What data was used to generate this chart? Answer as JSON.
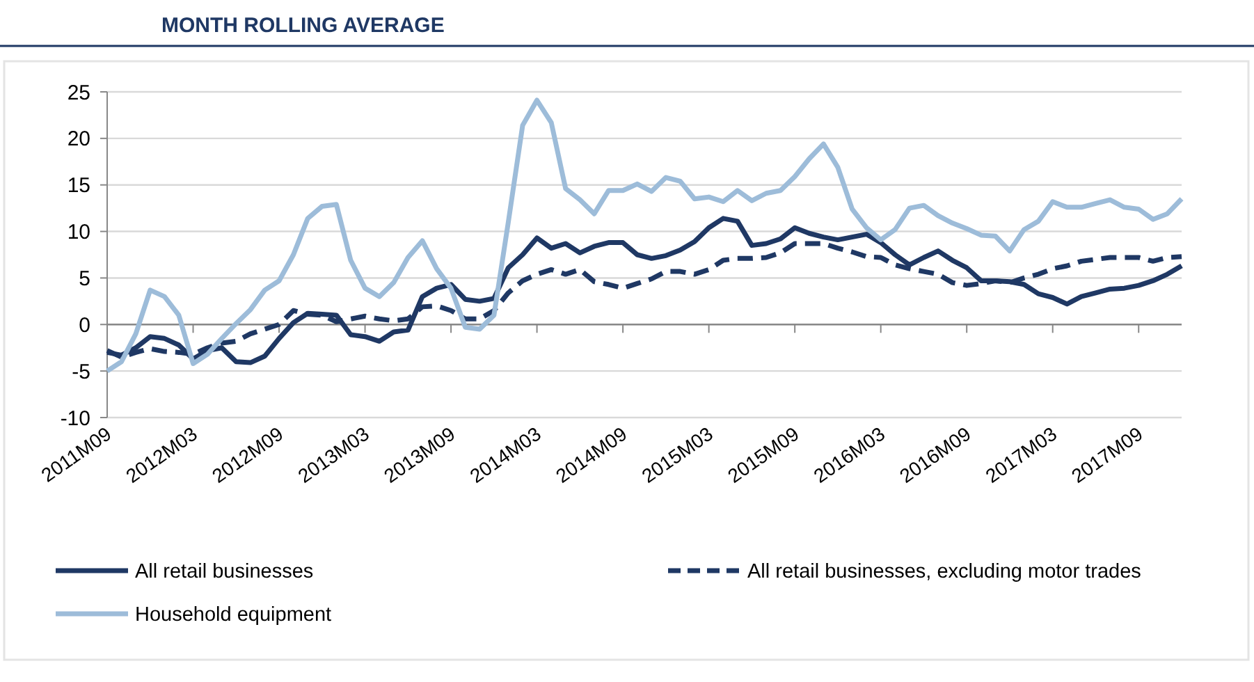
{
  "chart_data": {
    "type": "line",
    "title": "MONTH ROLLING AVERAGE",
    "categories": [
      "2011M09",
      null,
      null,
      null,
      null,
      null,
      "2012M03",
      null,
      null,
      null,
      null,
      null,
      "2012M09",
      null,
      null,
      null,
      null,
      null,
      "2013M03",
      null,
      null,
      null,
      null,
      null,
      "2013M09",
      null,
      null,
      null,
      null,
      null,
      "2014M03",
      null,
      null,
      null,
      null,
      null,
      "2014M09",
      null,
      null,
      null,
      null,
      null,
      "2015M03",
      null,
      null,
      null,
      null,
      null,
      "2015M09",
      null,
      null,
      null,
      null,
      null,
      "2016M03",
      null,
      null,
      null,
      null,
      null,
      "2016M09",
      null,
      null,
      null,
      null,
      null,
      "2017M03",
      null,
      null,
      null,
      null,
      null,
      "2017M09",
      null,
      null,
      null
    ],
    "series": [
      {
        "name": "All retail businesses",
        "color": "#1f3864",
        "line_style": "solid",
        "values": [
          -3.0,
          -3.3,
          -2.5,
          -1.3,
          -1.5,
          -2.2,
          -3.7,
          -2.8,
          -2.5,
          -4.0,
          -4.1,
          -3.4,
          -1.5,
          0.2,
          1.2,
          1.1,
          1.0,
          -1.1,
          -1.3,
          -1.8,
          -0.8,
          -0.6,
          3.0,
          3.9,
          4.3,
          2.7,
          2.5,
          2.8,
          6.1,
          7.5,
          9.3,
          8.2,
          8.7,
          7.7,
          8.4,
          8.8,
          8.8,
          7.5,
          7.1,
          7.4,
          8.0,
          8.9,
          10.4,
          11.4,
          11.1,
          8.5,
          8.7,
          9.2,
          10.4,
          9.8,
          9.4,
          9.1,
          9.4,
          9.7,
          8.8,
          7.5,
          6.4,
          7.2,
          7.9,
          6.9,
          6.1,
          4.7,
          4.7,
          4.6,
          4.3,
          3.3,
          2.9,
          2.2,
          3.0,
          3.4,
          3.8,
          3.9,
          4.2,
          4.7,
          5.4,
          6.3
        ]
      },
      {
        "name": "All retail businesses, excluding motor trades",
        "color": "#1f3864",
        "line_style": "dashed",
        "values": [
          -2.8,
          -3.5,
          -3.0,
          -2.6,
          -2.9,
          -3.0,
          -3.2,
          -2.5,
          -2.0,
          -1.8,
          -1.0,
          -0.5,
          0.0,
          1.5,
          1.1,
          1.0,
          0.3,
          0.6,
          0.9,
          0.6,
          0.4,
          0.6,
          1.9,
          2.0,
          1.5,
          0.6,
          0.6,
          1.5,
          3.4,
          4.7,
          5.4,
          5.9,
          5.4,
          5.9,
          4.6,
          4.3,
          3.9,
          4.4,
          4.9,
          5.7,
          5.7,
          5.4,
          5.9,
          6.9,
          7.1,
          7.1,
          7.2,
          7.7,
          8.7,
          8.7,
          8.7,
          8.2,
          7.8,
          7.3,
          7.2,
          6.4,
          6.0,
          5.7,
          5.4,
          4.5,
          4.2,
          4.4,
          4.7,
          4.5,
          5.0,
          5.4,
          6.0,
          6.3,
          6.8,
          7.0,
          7.2,
          7.2,
          7.2,
          6.8,
          7.2,
          7.3
        ]
      },
      {
        "name": "Household equipment",
        "color": "#9dbcd9",
        "line_style": "solid",
        "values": [
          -5.0,
          -4.0,
          -1.0,
          3.7,
          3.0,
          1.0,
          -4.2,
          -3.2,
          -1.5,
          0.1,
          1.6,
          3.7,
          4.7,
          7.5,
          11.4,
          12.7,
          12.9,
          6.9,
          3.9,
          3.0,
          4.5,
          7.2,
          9.0,
          6.0,
          3.9,
          -0.3,
          -0.5,
          1.0,
          11.0,
          21.4,
          24.1,
          21.7,
          14.6,
          13.4,
          11.9,
          14.4,
          14.4,
          15.1,
          14.3,
          15.8,
          15.4,
          13.5,
          13.7,
          13.2,
          14.4,
          13.3,
          14.1,
          14.4,
          15.9,
          17.8,
          19.4,
          16.9,
          12.4,
          10.4,
          9.1,
          10.2,
          12.5,
          12.8,
          11.7,
          10.9,
          10.3,
          9.6,
          9.5,
          7.9,
          10.2,
          11.1,
          13.2,
          12.6,
          12.6,
          13.0,
          13.4,
          12.6,
          12.4,
          11.3,
          11.9,
          13.5
        ]
      }
    ],
    "ylim": [
      -10,
      25
    ],
    "yticks": [
      -10,
      -5,
      0,
      5,
      10,
      15,
      20,
      25
    ],
    "grid": "y",
    "legend": "bottom",
    "marker": "none"
  }
}
